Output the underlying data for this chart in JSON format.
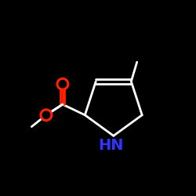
{
  "bg_color": "#000000",
  "bond_color": "#ffffff",
  "N_text_color": "#3333ff",
  "O_color": "#ff2200",
  "bond_lw": 2.0,
  "font_size_HN": 14,
  "font_size_O": 13
}
